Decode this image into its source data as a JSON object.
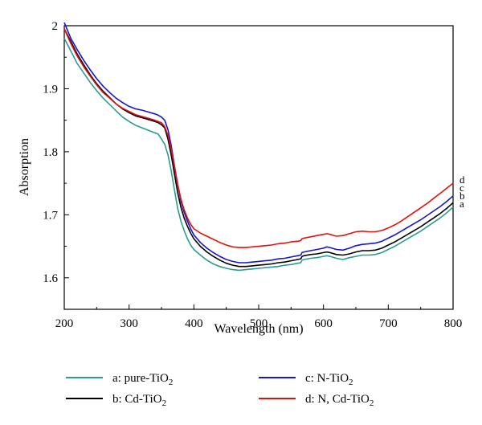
{
  "chart_data": {
    "type": "line",
    "title": "",
    "xlabel": "Wavelength (nm)",
    "ylabel": "Absorption",
    "xlim": [
      200,
      800
    ],
    "ylim": [
      1.55,
      2.0
    ],
    "xticks": [
      200,
      300,
      400,
      500,
      600,
      700,
      800
    ],
    "yticks": [
      1.6,
      1.7,
      1.8,
      1.9,
      2
    ],
    "grid": false,
    "legend_position": "bottom",
    "series": [
      {
        "name": "pure-TiO2",
        "legend_prefix": "a: pure-TiO",
        "legend_sub": "2",
        "end_label": "a",
        "color": "#2a9d8f",
        "x": [
          200,
          210,
          220,
          230,
          240,
          250,
          260,
          270,
          280,
          290,
          300,
          310,
          320,
          330,
          340,
          345,
          350,
          355,
          360,
          365,
          370,
          375,
          380,
          385,
          390,
          395,
          400,
          410,
          420,
          430,
          440,
          450,
          460,
          470,
          480,
          490,
          500,
          510,
          520,
          530,
          540,
          550,
          560,
          565,
          567,
          570,
          580,
          590,
          600,
          605,
          610,
          620,
          630,
          640,
          650,
          660,
          670,
          680,
          690,
          700,
          710,
          720,
          730,
          740,
          750,
          760,
          770,
          780,
          790,
          800
        ],
        "y": [
          1.98,
          1.96,
          1.94,
          1.925,
          1.91,
          1.897,
          1.885,
          1.875,
          1.865,
          1.855,
          1.848,
          1.842,
          1.838,
          1.834,
          1.83,
          1.828,
          1.82,
          1.812,
          1.795,
          1.77,
          1.74,
          1.71,
          1.69,
          1.675,
          1.662,
          1.652,
          1.645,
          1.636,
          1.628,
          1.622,
          1.618,
          1.615,
          1.613,
          1.612,
          1.613,
          1.614,
          1.615,
          1.616,
          1.617,
          1.618,
          1.62,
          1.621,
          1.623,
          1.624,
          1.628,
          1.629,
          1.631,
          1.632,
          1.634,
          1.635,
          1.634,
          1.631,
          1.629,
          1.632,
          1.634,
          1.636,
          1.636,
          1.637,
          1.64,
          1.645,
          1.65,
          1.656,
          1.662,
          1.668,
          1.674,
          1.681,
          1.688,
          1.695,
          1.703,
          1.712
        ]
      },
      {
        "name": "Cd-TiO2",
        "legend_prefix": "b: Cd-TiO",
        "legend_sub": "2",
        "end_label": "b",
        "color": "#000000",
        "x": [
          200,
          210,
          220,
          230,
          240,
          250,
          260,
          270,
          280,
          290,
          300,
          310,
          320,
          330,
          340,
          345,
          350,
          355,
          360,
          365,
          370,
          375,
          380,
          385,
          390,
          395,
          400,
          410,
          420,
          430,
          440,
          450,
          460,
          470,
          480,
          490,
          500,
          510,
          520,
          530,
          540,
          550,
          560,
          565,
          567,
          570,
          580,
          590,
          600,
          605,
          610,
          620,
          630,
          640,
          650,
          660,
          670,
          680,
          690,
          700,
          710,
          720,
          730,
          740,
          750,
          760,
          770,
          780,
          790,
          800
        ],
        "y": [
          1.995,
          1.975,
          1.955,
          1.938,
          1.922,
          1.908,
          1.896,
          1.886,
          1.876,
          1.868,
          1.862,
          1.857,
          1.854,
          1.851,
          1.848,
          1.846,
          1.843,
          1.838,
          1.82,
          1.795,
          1.765,
          1.735,
          1.712,
          1.695,
          1.682,
          1.671,
          1.662,
          1.65,
          1.641,
          1.634,
          1.628,
          1.623,
          1.62,
          1.618,
          1.618,
          1.619,
          1.62,
          1.621,
          1.622,
          1.624,
          1.625,
          1.627,
          1.629,
          1.63,
          1.634,
          1.635,
          1.637,
          1.638,
          1.64,
          1.641,
          1.64,
          1.637,
          1.636,
          1.638,
          1.641,
          1.643,
          1.643,
          1.644,
          1.647,
          1.652,
          1.657,
          1.663,
          1.669,
          1.675,
          1.681,
          1.688,
          1.695,
          1.702,
          1.71,
          1.719
        ]
      },
      {
        "name": "N-TiO2",
        "legend_prefix": "c: N-TiO",
        "legend_sub": "2",
        "end_label": "c",
        "color": "#1515d6",
        "x": [
          200,
          210,
          220,
          230,
          240,
          250,
          260,
          270,
          280,
          290,
          300,
          310,
          320,
          330,
          340,
          345,
          350,
          355,
          360,
          365,
          370,
          375,
          380,
          385,
          390,
          395,
          400,
          410,
          420,
          430,
          440,
          450,
          460,
          470,
          480,
          490,
          500,
          510,
          520,
          530,
          540,
          550,
          560,
          565,
          567,
          570,
          580,
          590,
          600,
          605,
          610,
          620,
          630,
          640,
          650,
          660,
          670,
          680,
          690,
          700,
          710,
          720,
          730,
          740,
          750,
          760,
          770,
          780,
          790,
          800
        ],
        "y": [
          2.005,
          1.98,
          1.962,
          1.945,
          1.93,
          1.916,
          1.904,
          1.894,
          1.885,
          1.878,
          1.872,
          1.868,
          1.866,
          1.863,
          1.86,
          1.858,
          1.855,
          1.85,
          1.835,
          1.81,
          1.778,
          1.748,
          1.722,
          1.704,
          1.69,
          1.678,
          1.668,
          1.656,
          1.647,
          1.64,
          1.634,
          1.629,
          1.626,
          1.624,
          1.624,
          1.625,
          1.626,
          1.627,
          1.628,
          1.63,
          1.631,
          1.633,
          1.635,
          1.636,
          1.64,
          1.641,
          1.643,
          1.645,
          1.647,
          1.649,
          1.648,
          1.645,
          1.644,
          1.647,
          1.651,
          1.653,
          1.654,
          1.655,
          1.658,
          1.663,
          1.668,
          1.674,
          1.68,
          1.686,
          1.692,
          1.699,
          1.706,
          1.713,
          1.721,
          1.73
        ]
      },
      {
        "name": "N, Cd-TiO2",
        "legend_prefix": "d: N, Cd-TiO",
        "legend_sub": "2",
        "end_label": "d",
        "color": "#e31010",
        "x": [
          200,
          210,
          220,
          230,
          240,
          250,
          260,
          270,
          280,
          290,
          300,
          310,
          320,
          330,
          340,
          345,
          350,
          355,
          360,
          365,
          370,
          375,
          380,
          385,
          390,
          395,
          400,
          410,
          420,
          430,
          440,
          450,
          460,
          470,
          480,
          490,
          500,
          510,
          520,
          530,
          540,
          550,
          560,
          565,
          567,
          570,
          580,
          590,
          600,
          605,
          610,
          620,
          630,
          640,
          650,
          660,
          670,
          680,
          690,
          700,
          710,
          720,
          730,
          740,
          750,
          760,
          770,
          780,
          790,
          800
        ],
        "y": [
          1.995,
          1.972,
          1.952,
          1.935,
          1.92,
          1.906,
          1.894,
          1.885,
          1.876,
          1.869,
          1.864,
          1.859,
          1.856,
          1.853,
          1.85,
          1.848,
          1.846,
          1.84,
          1.826,
          1.805,
          1.776,
          1.748,
          1.725,
          1.708,
          1.695,
          1.685,
          1.678,
          1.671,
          1.666,
          1.661,
          1.656,
          1.652,
          1.649,
          1.648,
          1.648,
          1.649,
          1.65,
          1.651,
          1.652,
          1.654,
          1.655,
          1.657,
          1.658,
          1.659,
          1.662,
          1.663,
          1.665,
          1.667,
          1.669,
          1.67,
          1.669,
          1.666,
          1.667,
          1.67,
          1.673,
          1.674,
          1.673,
          1.673,
          1.675,
          1.679,
          1.684,
          1.69,
          1.697,
          1.704,
          1.711,
          1.718,
          1.726,
          1.734,
          1.742,
          1.75
        ]
      }
    ]
  }
}
